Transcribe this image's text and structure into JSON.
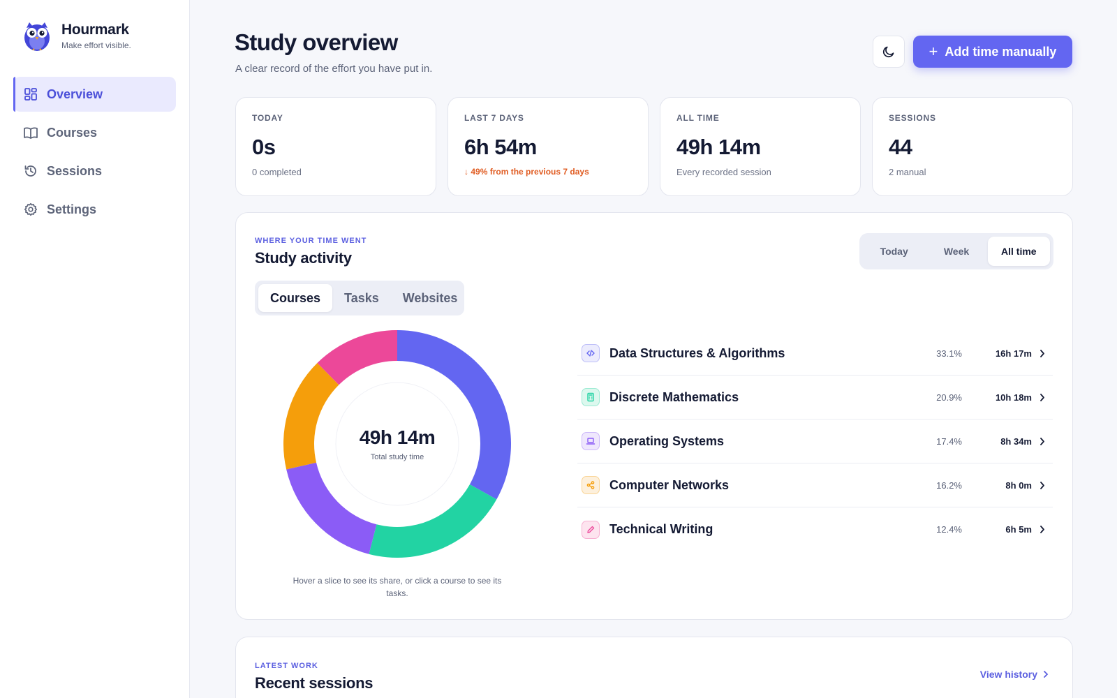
{
  "brand": {
    "name": "Hourmark",
    "tagline": "Make effort visible."
  },
  "nav": [
    {
      "label": "Overview",
      "icon": "grid-icon",
      "active": true
    },
    {
      "label": "Courses",
      "icon": "book-icon",
      "active": false
    },
    {
      "label": "Sessions",
      "icon": "history-icon",
      "active": false
    },
    {
      "label": "Settings",
      "icon": "gear-icon",
      "active": false
    }
  ],
  "header": {
    "title": "Study overview",
    "subtitle": "A clear record of the effort you have put in.",
    "add_button": "Add time manually"
  },
  "stats": [
    {
      "label": "TODAY",
      "value": "0s",
      "note": "0 completed"
    },
    {
      "label": "LAST 7 DAYS",
      "value": "6h 54m",
      "note": "49% from the previous 7 days",
      "trend": "down"
    },
    {
      "label": "ALL TIME",
      "value": "49h 14m",
      "note": "Every recorded session"
    },
    {
      "label": "SESSIONS",
      "value": "44",
      "note": "2 manual"
    }
  ],
  "activity": {
    "eyebrow": "WHERE YOUR TIME WENT",
    "title": "Study activity",
    "ranges": [
      "Today",
      "Week",
      "All time"
    ],
    "active_range": "All time",
    "types": [
      "Courses",
      "Tasks",
      "Websites"
    ],
    "active_type": "Courses",
    "total": "49h 14m",
    "total_caption": "Total study time",
    "hint": "Hover a slice to see its share, or click a course to see its tasks."
  },
  "chart_data": {
    "type": "pie",
    "categories": [
      "Data Structures & Algorithms",
      "Discrete Mathematics",
      "Operating Systems",
      "Computer Networks",
      "Technical Writing"
    ],
    "values": [
      33.1,
      20.9,
      17.4,
      16.2,
      12.4
    ],
    "times": [
      "16h 17m",
      "10h 18m",
      "8h 34m",
      "8h 0m",
      "6h 5m"
    ],
    "pct_labels": [
      "33.1%",
      "20.9%",
      "17.4%",
      "16.2%",
      "12.4%"
    ],
    "colors": [
      "#6366f1",
      "#22d3a3",
      "#8b5cf6",
      "#f59e0b",
      "#ec4899"
    ],
    "icons": [
      "code-icon",
      "calculator-icon",
      "laptop-icon",
      "share-icon",
      "pencil-icon"
    ]
  },
  "recent": {
    "eyebrow": "LATEST WORK",
    "title": "Recent sessions",
    "link": "View history"
  }
}
